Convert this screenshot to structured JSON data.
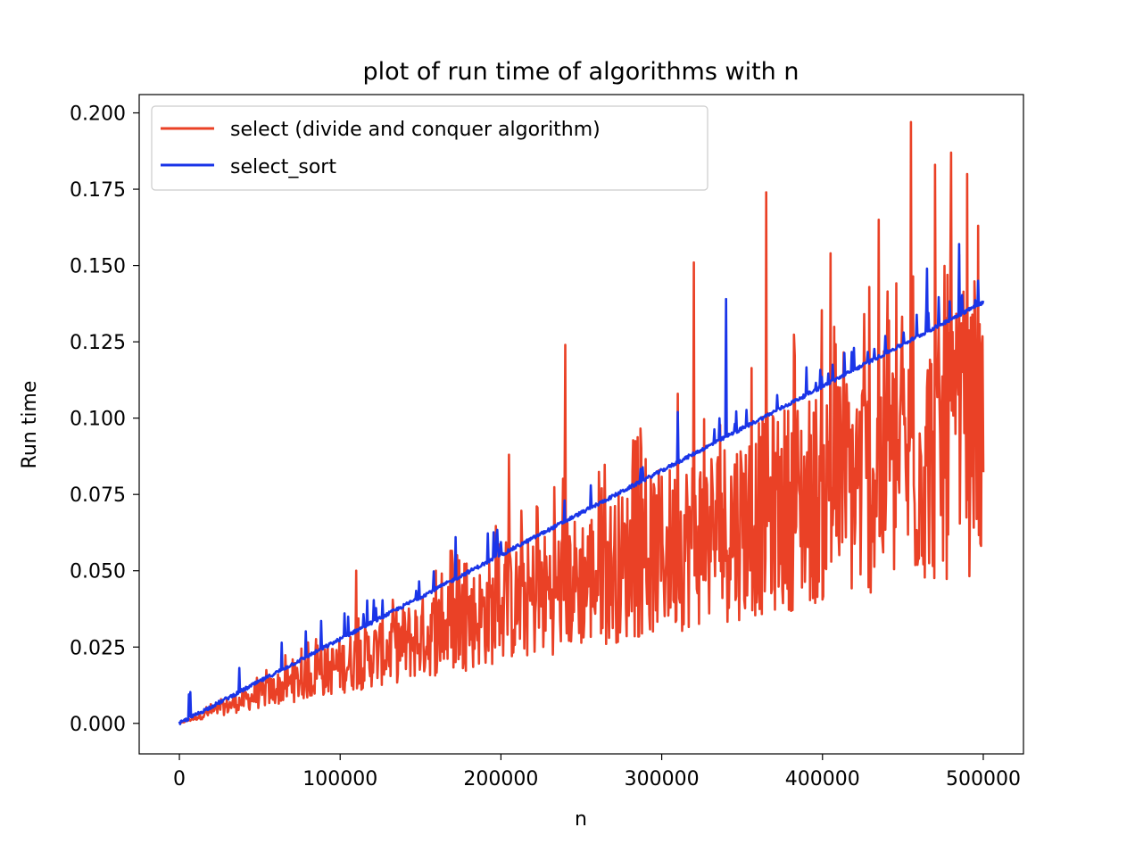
{
  "chart_data": {
    "type": "line",
    "title": "plot of run time of algorithms with n",
    "xlabel": "n",
    "ylabel": "Run time",
    "xlim": [
      -25000,
      525000
    ],
    "ylim": [
      -0.01,
      0.206
    ],
    "xticks": [
      0,
      100000,
      200000,
      300000,
      400000,
      500000
    ],
    "xtick_labels": [
      "0",
      "100000",
      "200000",
      "300000",
      "400000",
      "500000"
    ],
    "yticks": [
      0.0,
      0.025,
      0.05,
      0.075,
      0.1,
      0.125,
      0.15,
      0.175,
      0.2
    ],
    "ytick_labels": [
      "0.000",
      "0.025",
      "0.050",
      "0.075",
      "0.100",
      "0.125",
      "0.150",
      "0.175",
      "0.200"
    ],
    "grid": false,
    "legend_position": "top-left",
    "series": [
      {
        "name": "select (divide and conquer algorithm)",
        "color": "#ea4126",
        "x_range": [
          0,
          500000
        ],
        "trend": "noisy linear growth; values span roughly 0.35x to 1.0x of 2.76e-7*n, with spikes up to ~0.197",
        "spikes": [
          {
            "x": 110000,
            "y": 0.05
          },
          {
            "x": 205000,
            "y": 0.088
          },
          {
            "x": 240000,
            "y": 0.124
          },
          {
            "x": 310000,
            "y": 0.108
          },
          {
            "x": 320000,
            "y": 0.151
          },
          {
            "x": 365000,
            "y": 0.174
          },
          {
            "x": 405000,
            "y": 0.154
          },
          {
            "x": 435000,
            "y": 0.165
          },
          {
            "x": 455000,
            "y": 0.197
          },
          {
            "x": 470000,
            "y": 0.183
          },
          {
            "x": 480000,
            "y": 0.187
          },
          {
            "x": 490000,
            "y": 0.18
          },
          {
            "x": 497000,
            "y": 0.163
          }
        ]
      },
      {
        "name": "select_sort",
        "color": "#1a35e8",
        "x_range": [
          0,
          500000
        ],
        "trend": "near-linear growth from 0 to ~0.138 (about 2.76e-7*n) with small spikes",
        "spikes": [
          {
            "x": 172000,
            "y": 0.061
          },
          {
            "x": 310000,
            "y": 0.102
          },
          {
            "x": 340000,
            "y": 0.139
          },
          {
            "x": 465000,
            "y": 0.149
          },
          {
            "x": 485000,
            "y": 0.157
          },
          {
            "x": 497000,
            "y": 0.145
          }
        ]
      }
    ]
  }
}
